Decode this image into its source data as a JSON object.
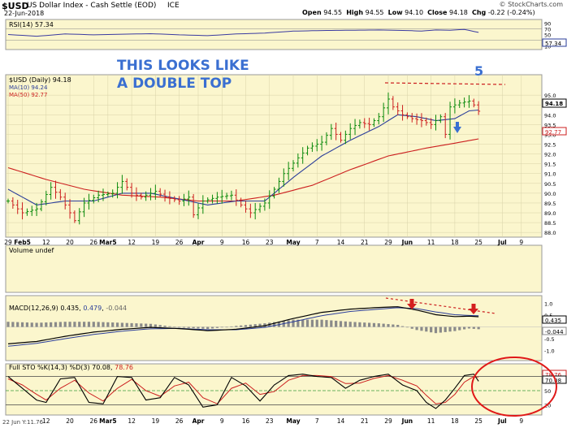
{
  "header": {
    "ticker": "$USD",
    "name": "US Dollar Index - Cash Settle (EOD)",
    "exchange": "ICE",
    "date": "22-Jun-2018",
    "source": "© StockCharts.com",
    "quote": [
      {
        "label": "Open",
        "value": "94.55"
      },
      {
        "label": "High",
        "value": "94.55"
      },
      {
        "label": "Low",
        "value": "94.10"
      },
      {
        "label": "Close",
        "value": "94.18"
      },
      {
        "label": "Chg",
        "value": "-0.22 (-0.24%)"
      }
    ]
  },
  "colors": {
    "panel_bg": "#fbf6cd",
    "up": "#0b8a0b",
    "down": "#cc1f1f",
    "ma10": "#2a3d9a",
    "ma50": "#cc1f1f",
    "annotation": "#3a6fd1"
  },
  "chart_data": [
    {
      "type": "line",
      "panel": "rsi",
      "label": "RSI(14) 57.34",
      "ylim": [
        0,
        100
      ],
      "ticks": [
        "90",
        "70",
        "50",
        "30",
        "10"
      ],
      "last_value_label": "57.34",
      "x_index": [
        0,
        6,
        12,
        18,
        24,
        30,
        36,
        42,
        48,
        54,
        60,
        66,
        72,
        78,
        84,
        87,
        90,
        93,
        96,
        99
      ],
      "values": [
        50,
        44,
        52,
        49,
        51,
        53,
        49,
        46,
        52,
        55,
        62,
        64,
        65,
        66,
        64,
        62,
        66,
        65,
        68,
        57.34
      ]
    },
    {
      "type": "candlestick",
      "panel": "price",
      "label": "$USD (Daily) 94.18",
      "legend": [
        {
          "name": "MA(10) 94.24",
          "color": "#2a3d9a"
        },
        {
          "name": "MA(50) 92.77",
          "color": "#cc1f1f"
        }
      ],
      "annotations": {
        "headline": [
          "THIS LOOKS LIKE",
          "A DOUBLE TOP"
        ],
        "wave": "5"
      },
      "price_tags": [
        "94.18",
        "92.77"
      ],
      "ylim": [
        87.8,
        96.0
      ],
      "y_ticks": [
        "95.0",
        "94.5",
        "94.0",
        "93.5",
        "93.0",
        "92.5",
        "92.0",
        "91.5",
        "91.0",
        "90.5",
        "90.0",
        "89.5",
        "89.0",
        "88.5",
        "88.0"
      ],
      "x_ticks": [
        {
          "i": 0,
          "label": "29"
        },
        {
          "i": 3,
          "label": "Feb5"
        },
        {
          "i": 8,
          "label": "12"
        },
        {
          "i": 13,
          "label": "20"
        },
        {
          "i": 18,
          "label": "26"
        },
        {
          "i": 21,
          "label": "Mar5"
        },
        {
          "i": 26,
          "label": "12"
        },
        {
          "i": 31,
          "label": "19"
        },
        {
          "i": 36,
          "label": "26"
        },
        {
          "i": 40,
          "label": "Apr"
        },
        {
          "i": 45,
          "label": "9"
        },
        {
          "i": 50,
          "label": "16"
        },
        {
          "i": 55,
          "label": "23"
        },
        {
          "i": 60,
          "label": "May"
        },
        {
          "i": 65,
          "label": "7"
        },
        {
          "i": 70,
          "label": "14"
        },
        {
          "i": 75,
          "label": "21"
        },
        {
          "i": 80,
          "label": "29"
        },
        {
          "i": 84,
          "label": "Jun"
        },
        {
          "i": 89,
          "label": "11"
        },
        {
          "i": 94,
          "label": "18"
        },
        {
          "i": 99,
          "label": "25"
        },
        {
          "i": 104,
          "label": "Jul"
        },
        {
          "i": 108,
          "label": "9"
        }
      ],
      "close_keypoints": [
        [
          0,
          89.6
        ],
        [
          3,
          89.0
        ],
        [
          6,
          89.2
        ],
        [
          9,
          90.3
        ],
        [
          11,
          89.8
        ],
        [
          14,
          88.6
        ],
        [
          16,
          89.5
        ],
        [
          19,
          89.9
        ],
        [
          22,
          90.0
        ],
        [
          24,
          90.6
        ],
        [
          26,
          90.0
        ],
        [
          28,
          89.8
        ],
        [
          31,
          90.1
        ],
        [
          33,
          89.8
        ],
        [
          36,
          89.6
        ],
        [
          38,
          89.8
        ],
        [
          39,
          88.9
        ],
        [
          41,
          89.6
        ],
        [
          44,
          89.8
        ],
        [
          47,
          89.9
        ],
        [
          49,
          89.4
        ],
        [
          51,
          89.0
        ],
        [
          54,
          89.5
        ],
        [
          56,
          90.2
        ],
        [
          58,
          91.0
        ],
        [
          61,
          91.8
        ],
        [
          63,
          92.3
        ],
        [
          66,
          92.6
        ],
        [
          68,
          93.3
        ],
        [
          70,
          92.7
        ],
        [
          72,
          93.3
        ],
        [
          74,
          93.6
        ],
        [
          76,
          93.5
        ],
        [
          78,
          93.9
        ],
        [
          80,
          94.8
        ],
        [
          81,
          94.4
        ],
        [
          83,
          94.0
        ],
        [
          85,
          93.8
        ],
        [
          87,
          93.7
        ],
        [
          89,
          93.5
        ],
        [
          91,
          93.9
        ],
        [
          92,
          93.0
        ],
        [
          93,
          94.4
        ],
        [
          95,
          94.6
        ],
        [
          97,
          94.7
        ],
        [
          98,
          94.5
        ],
        [
          99,
          94.18
        ]
      ],
      "ma10_keypoints": [
        [
          0,
          90.2
        ],
        [
          6,
          89.4
        ],
        [
          12,
          89.6
        ],
        [
          18,
          89.6
        ],
        [
          24,
          90.0
        ],
        [
          30,
          90.0
        ],
        [
          36,
          89.7
        ],
        [
          42,
          89.4
        ],
        [
          48,
          89.6
        ],
        [
          54,
          89.6
        ],
        [
          60,
          90.8
        ],
        [
          66,
          91.9
        ],
        [
          72,
          92.7
        ],
        [
          78,
          93.4
        ],
        [
          82,
          94.0
        ],
        [
          86,
          93.9
        ],
        [
          90,
          93.7
        ],
        [
          94,
          93.8
        ],
        [
          97,
          94.2
        ],
        [
          99,
          94.24
        ]
      ],
      "ma50_keypoints": [
        [
          0,
          91.3
        ],
        [
          8,
          90.7
        ],
        [
          16,
          90.2
        ],
        [
          24,
          89.9
        ],
        [
          32,
          89.8
        ],
        [
          40,
          89.6
        ],
        [
          48,
          89.6
        ],
        [
          56,
          89.9
        ],
        [
          64,
          90.4
        ],
        [
          72,
          91.2
        ],
        [
          80,
          91.9
        ],
        [
          88,
          92.3
        ],
        [
          94,
          92.55
        ],
        [
          99,
          92.77
        ]
      ]
    },
    {
      "type": "bar",
      "panel": "volume",
      "label": "Volume undef"
    },
    {
      "type": "line",
      "panel": "macd",
      "label": "MACD(12,26,9) 0.435, 0.479, -0.044",
      "legend_values": [
        "0.435",
        "0.479",
        "-0.044"
      ],
      "ylim": [
        -1.4,
        1.3
      ],
      "y_ticks": [
        "1.0",
        "0.5",
        "-0.5",
        "-1.0"
      ],
      "tags": [
        "0.435",
        "-0.044"
      ],
      "x_index": [
        0,
        6,
        12,
        18,
        24,
        30,
        36,
        42,
        48,
        54,
        60,
        66,
        72,
        78,
        82,
        86,
        90,
        94,
        97,
        99
      ],
      "macd": [
        -0.72,
        -0.62,
        -0.4,
        -0.22,
        -0.1,
        -0.02,
        -0.07,
        -0.16,
        -0.1,
        0.05,
        0.36,
        0.62,
        0.76,
        0.83,
        0.86,
        0.72,
        0.52,
        0.44,
        0.46,
        0.435
      ],
      "signal": [
        -0.82,
        -0.7,
        -0.5,
        -0.32,
        -0.18,
        -0.08,
        -0.06,
        -0.12,
        -0.12,
        -0.02,
        0.22,
        0.48,
        0.66,
        0.76,
        0.82,
        0.78,
        0.64,
        0.52,
        0.49,
        0.479
      ]
    },
    {
      "type": "line",
      "panel": "stochastics",
      "label": "Full STO %K(14,3) %D(3) 70.08, 78.76",
      "legend_values": [
        "70.08",
        "78.76"
      ],
      "ylim": [
        0,
        100
      ],
      "y_ticks": [
        "50",
        "20"
      ],
      "tags": [
        "78.76",
        "70.08"
      ],
      "x_index": [
        0,
        3,
        6,
        8,
        11,
        14,
        17,
        20,
        23,
        26,
        29,
        32,
        35,
        38,
        41,
        44,
        47,
        50,
        53,
        56,
        59,
        62,
        65,
        68,
        71,
        74,
        77,
        80,
        83,
        86,
        88,
        90,
        92,
        94,
        96,
        98,
        99
      ],
      "k": [
        80,
        55,
        30,
        25,
        75,
        78,
        25,
        22,
        80,
        78,
        30,
        35,
        78,
        62,
        15,
        20,
        78,
        60,
        28,
        62,
        82,
        85,
        80,
        78,
        55,
        72,
        80,
        85,
        62,
        50,
        25,
        12,
        30,
        55,
        82,
        85,
        70.08
      ],
      "d": [
        75,
        62,
        42,
        30,
        55,
        72,
        45,
        28,
        55,
        74,
        50,
        38,
        60,
        68,
        35,
        22,
        55,
        66,
        42,
        48,
        72,
        82,
        82,
        80,
        65,
        66,
        76,
        82,
        72,
        60,
        40,
        22,
        25,
        42,
        68,
        80,
        78.76
      ]
    }
  ],
  "footer_left": "22 Jun Y:11.76",
  "x_labels_bottom": [
    "12",
    "20",
    "26",
    "Mar5",
    "12",
    "19",
    "26",
    "Apr",
    "9",
    "16",
    "23",
    "May",
    "7",
    "14",
    "21",
    "29",
    "Jun",
    "11",
    "18",
    "25",
    "Jul",
    "9"
  ]
}
